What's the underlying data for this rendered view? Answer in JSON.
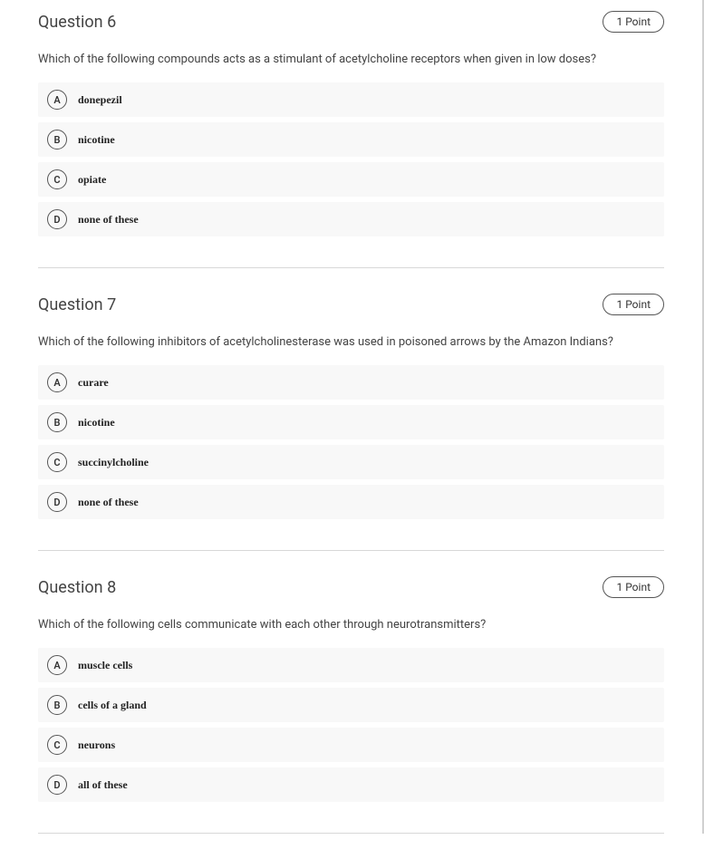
{
  "questions": [
    {
      "title": "Question 6",
      "points": "1 Point",
      "text": "Which of the following compounds acts as a stimulant of acetylcholine receptors when given in low doses?",
      "options": [
        {
          "letter": "A",
          "label": "donepezil"
        },
        {
          "letter": "B",
          "label": "nicotine"
        },
        {
          "letter": "C",
          "label": "opiate"
        },
        {
          "letter": "D",
          "label": "none of these"
        }
      ]
    },
    {
      "title": "Question 7",
      "points": "1 Point",
      "text": "Which of the following inhibitors of acetylcholinesterase was used in poisoned arrows by the Amazon Indians?",
      "options": [
        {
          "letter": "A",
          "label": "curare"
        },
        {
          "letter": "B",
          "label": "nicotine"
        },
        {
          "letter": "C",
          "label": "succinylcholine"
        },
        {
          "letter": "D",
          "label": "none of these"
        }
      ]
    },
    {
      "title": "Question 8",
      "points": "1 Point",
      "text": "Which of the following cells communicate with each other through neurotransmitters?",
      "options": [
        {
          "letter": "A",
          "label": "muscle cells"
        },
        {
          "letter": "B",
          "label": "cells of a gland"
        },
        {
          "letter": "C",
          "label": "neurons"
        },
        {
          "letter": "D",
          "label": "all of these"
        }
      ]
    }
  ]
}
